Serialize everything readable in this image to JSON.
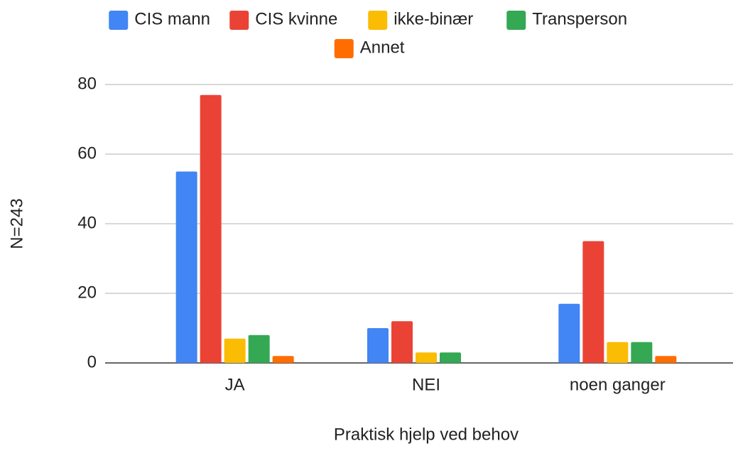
{
  "chart_data": {
    "type": "bar",
    "categories": [
      "JA",
      "NEI",
      "noen ganger"
    ],
    "series": [
      {
        "name": "CIS mann",
        "color": "#4285f4",
        "values": [
          55,
          10,
          17
        ]
      },
      {
        "name": "CIS kvinne",
        "color": "#ea4335",
        "values": [
          77,
          12,
          35
        ]
      },
      {
        "name": "ikke-binær",
        "color": "#fbbc04",
        "values": [
          7,
          3,
          6
        ]
      },
      {
        "name": "Transperson",
        "color": "#34a853",
        "values": [
          8,
          3,
          6
        ]
      },
      {
        "name": "Annet",
        "color": "#ff6d01",
        "values": [
          2,
          0,
          2
        ]
      }
    ],
    "x_label": "Praktisk hjelp ved behov",
    "y_label": "N=243",
    "ylim": [
      0,
      80
    ],
    "yticks": [
      0,
      20,
      40,
      60,
      80
    ],
    "grid": true,
    "legend": "top"
  }
}
